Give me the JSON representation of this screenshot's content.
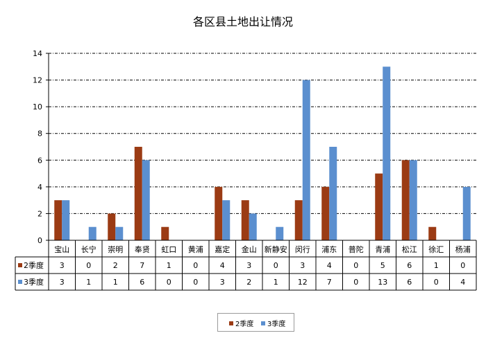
{
  "chart_data": {
    "type": "bar",
    "title": "各区县土地出让情况",
    "categories": [
      "宝山",
      "长宁",
      "崇明",
      "奉贤",
      "虹口",
      "黄浦",
      "嘉定",
      "金山",
      "新静安",
      "闵行",
      "浦东",
      "普陀",
      "青浦",
      "松江",
      "徐汇",
      "杨浦"
    ],
    "series": [
      {
        "name": "2季度",
        "color": "#9b3b14",
        "values": [
          3,
          0,
          2,
          7,
          1,
          0,
          4,
          3,
          0,
          3,
          4,
          0,
          5,
          6,
          1,
          0
        ]
      },
      {
        "name": "3季度",
        "color": "#5b8fcf",
        "values": [
          3,
          1,
          1,
          6,
          0,
          0,
          3,
          2,
          1,
          12,
          7,
          0,
          13,
          6,
          0,
          4
        ]
      }
    ],
    "ylim": [
      0,
      14
    ],
    "yticks": [
      0,
      2,
      4,
      6,
      8,
      10,
      12,
      14
    ],
    "grid": true,
    "legend": "bottom",
    "data_table": true
  }
}
